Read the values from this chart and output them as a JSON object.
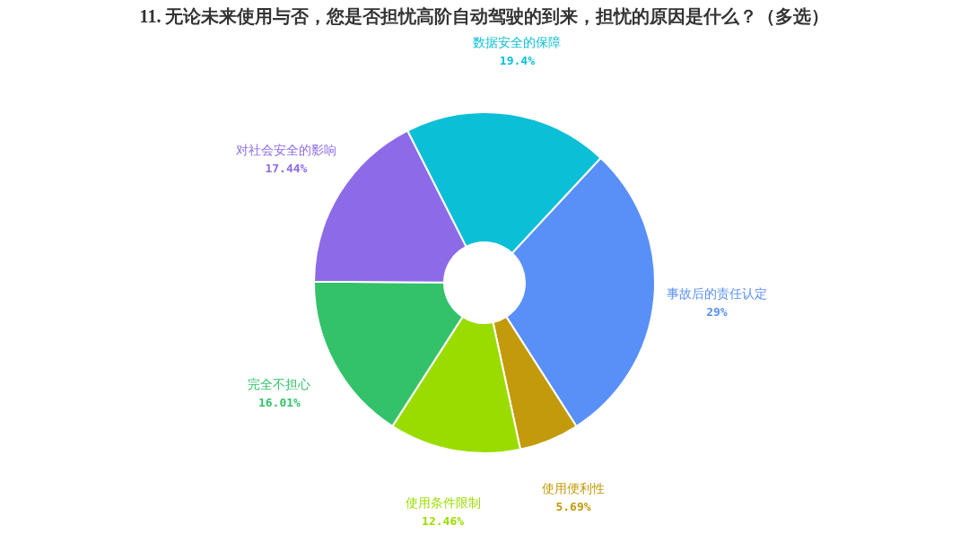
{
  "chart_data": {
    "type": "donut",
    "title": "11. 无论未来使用与否，您是否担忧高阶自动驾驶的到来，担忧的原因是什么？（多选）",
    "categories": [
      "事故后的责任认定",
      "使用便利性",
      "使用条件限制",
      "完全不担心",
      "对社会安全的影响",
      "数据安全的保障"
    ],
    "values": [
      29,
      5.69,
      12.46,
      16.01,
      17.44,
      19.4
    ],
    "colors": [
      "#5890f8",
      "#c39a0b",
      "#9bdc00",
      "#33c26a",
      "#8d6be8",
      "#0bbfd6"
    ],
    "value_labels": [
      "29%",
      "5.69%",
      "12.46%",
      "16.01%",
      "17.44%",
      "19.4%"
    ],
    "legend": false
  }
}
